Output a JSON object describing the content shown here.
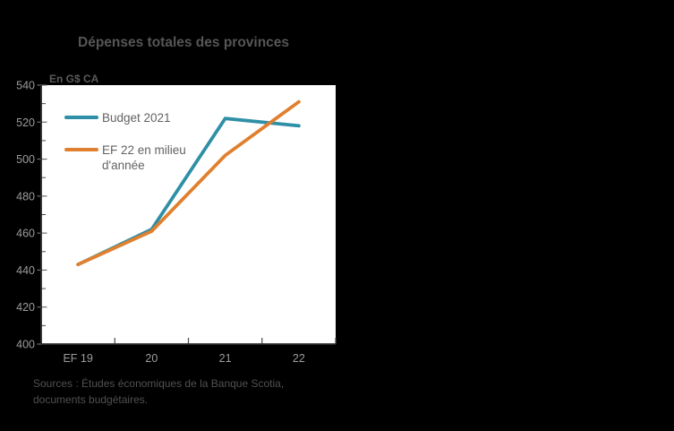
{
  "page": {
    "background_color": "#000000",
    "plot_background_color": "#ffffff"
  },
  "chart": {
    "title": "Dépenses totales des provinces",
    "unit_label": "En G$ CA",
    "source_lines": [
      "Sources : Études économiques de la Banque Scotia,",
      "documents budgétaires."
    ]
  },
  "chart_data": {
    "type": "line",
    "title": "Dépenses totales des provinces",
    "ylabel": "En G$ CA",
    "categories": [
      "EF 19",
      "20",
      "21",
      "22"
    ],
    "series": [
      {
        "name": "Budget 2021",
        "label_lines": [
          "Budget 2021"
        ],
        "color": "#2E8FA6",
        "values": [
          443,
          462,
          522,
          518
        ]
      },
      {
        "name": "EF 22 en milieu d'année",
        "label_lines": [
          "EF 22 en milieu",
          "d'année"
        ],
        "color": "#E0802F",
        "values": [
          443,
          461,
          502,
          531
        ]
      }
    ],
    "ylim": [
      400,
      540
    ],
    "ytick_step": 20,
    "yminor_step": 10,
    "grid": false,
    "legend_position": "top-left",
    "axis_color": "#2b2b2b",
    "tick_label_color": "#9c9c9c"
  }
}
